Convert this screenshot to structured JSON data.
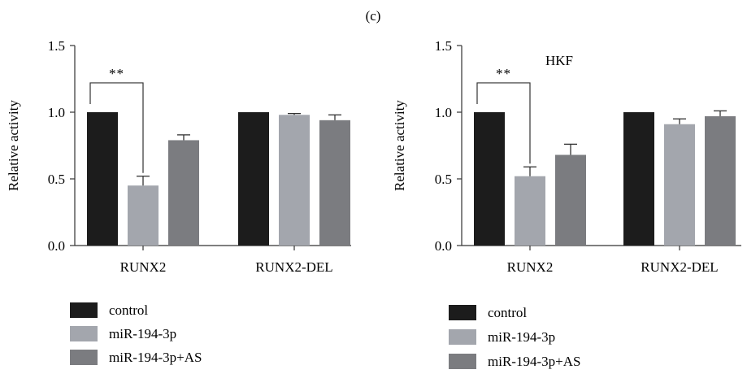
{
  "panel_label": "(c)",
  "colors": {
    "control": "#1c1c1c",
    "mir": "#a3a6ad",
    "mir_as": "#7b7c80",
    "axis": "#333333"
  },
  "chart_data": [
    {
      "type": "bar",
      "title": "",
      "xlabel": "",
      "ylabel": "Relative activity",
      "ylim": [
        0,
        1.5
      ],
      "yticks": [
        "0.0",
        "0.5",
        "1.0",
        "1.5"
      ],
      "categories": [
        "RUNX2",
        "RUNX2-DEL"
      ],
      "series": [
        {
          "name": "control",
          "values": [
            1.0,
            1.0
          ],
          "errors": [
            0.0,
            0.0
          ]
        },
        {
          "name": "miR-194-3p",
          "values": [
            0.45,
            0.98
          ],
          "errors": [
            0.07,
            0.01
          ]
        },
        {
          "name": "miR-194-3p+AS",
          "values": [
            0.79,
            0.94
          ],
          "errors": [
            0.04,
            0.04
          ]
        }
      ],
      "significance": {
        "label": "**",
        "category": "RUNX2",
        "from_series": 0,
        "to_series": 1
      },
      "legend": [
        "control",
        "miR-194-3p",
        "miR-194-3p+AS"
      ],
      "legend_position": "bottom-left",
      "grid": false
    },
    {
      "type": "bar",
      "title": "HKF",
      "xlabel": "",
      "ylabel": "Relative activity",
      "ylim": [
        0,
        1.5
      ],
      "yticks": [
        "0.0",
        "0.5",
        "1.0",
        "1.5"
      ],
      "categories": [
        "RUNX2",
        "RUNX2-DEL"
      ],
      "series": [
        {
          "name": "control",
          "values": [
            1.0,
            1.0
          ],
          "errors": [
            0.0,
            0.0
          ]
        },
        {
          "name": "miR-194-3p",
          "values": [
            0.52,
            0.91
          ],
          "errors": [
            0.07,
            0.04
          ]
        },
        {
          "name": "miR-194-3p+AS",
          "values": [
            0.68,
            0.97
          ],
          "errors": [
            0.08,
            0.04
          ]
        }
      ],
      "significance": {
        "label": "**",
        "category": "RUNX2",
        "from_series": 0,
        "to_series": 1
      },
      "legend": [
        "control",
        "miR-194-3p",
        "miR-194-3p+AS"
      ],
      "legend_position": "bottom-left",
      "grid": false
    }
  ]
}
